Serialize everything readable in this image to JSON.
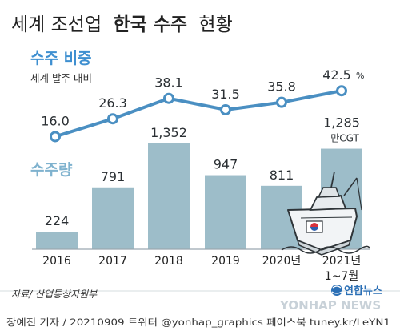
{
  "title": {
    "prefix": "세계 조선업",
    "highlight": "한국 수주",
    "suffix": "현황"
  },
  "share_section": {
    "label": "수주 비중",
    "sublabel": "세계 발주 대비",
    "unit": "%"
  },
  "volume_section": {
    "label": "수주량",
    "unit": "만CGT"
  },
  "chart_data": [
    {
      "type": "line",
      "title": "수주 비중",
      "subtitle": "세계 발주 대비",
      "categories": [
        "2016",
        "2017",
        "2018",
        "2019",
        "2020년",
        "2021년 1~7월"
      ],
      "values": [
        16.0,
        26.3,
        38.1,
        31.5,
        35.8,
        42.5
      ],
      "value_labels": [
        "16.0",
        "26.3",
        "38.1",
        "31.5",
        "35.8",
        "42.5"
      ],
      "unit": "%",
      "color": "#4a8fc2",
      "grid": false
    },
    {
      "type": "bar",
      "title": "수주량",
      "categories": [
        "2016",
        "2017",
        "2018",
        "2019",
        "2020년",
        "2021년 1~7월"
      ],
      "values": [
        224,
        791,
        1352,
        947,
        811,
        1285
      ],
      "value_labels": [
        "224",
        "791",
        "1,352",
        "947",
        "811",
        "1,285"
      ],
      "unit": "만CGT",
      "color": "#9dbdc9",
      "grid": false
    }
  ],
  "x_labels": [
    {
      "line1": "2016",
      "line2": ""
    },
    {
      "line1": "2017",
      "line2": ""
    },
    {
      "line1": "2018",
      "line2": ""
    },
    {
      "line1": "2019",
      "line2": ""
    },
    {
      "line1": "2020년",
      "line2": ""
    },
    {
      "line1": "2021년",
      "line2": "1~7월"
    }
  ],
  "source": "자료/ 산업통상자원부",
  "brand": {
    "name": "연합뉴스",
    "watermark": "YONHAP NEWS"
  },
  "credit": "장예진 기자 / 20210909 트위터 @yonhap_graphics 페이스북 tuney.kr/LeYN1",
  "colors": {
    "line": "#4a8fc2",
    "bar": "#9dbdc9",
    "text": "#333333",
    "background": "#ffffff"
  }
}
